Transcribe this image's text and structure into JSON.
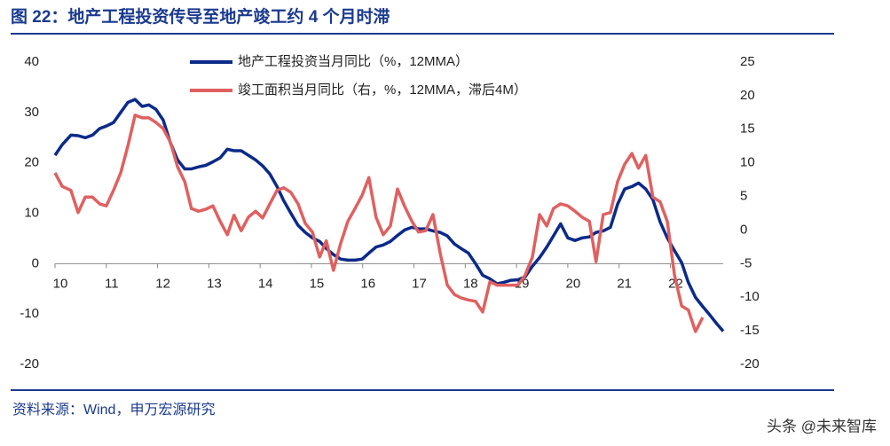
{
  "chart_data": {
    "type": "line",
    "title": "图 22：地产工程投资传导至地产竣工约 4 个月时滞",
    "source": "资料来源：Wind，申万宏源研究",
    "watermark": "头条 @未来智库",
    "x": [
      2010.0,
      2010.14,
      2010.31,
      2010.45,
      2010.59,
      2010.73,
      2010.87,
      2011.0,
      2011.14,
      2011.28,
      2011.42,
      2011.56,
      2011.7,
      2011.83,
      2011.97,
      2012.11,
      2012.25,
      2012.39,
      2012.53,
      2012.66,
      2012.8,
      2012.94,
      2013.08,
      2013.22,
      2013.36,
      2013.49,
      2013.63,
      2013.77,
      2013.91,
      2014.05,
      2014.19,
      2014.33,
      2014.46,
      2014.6,
      2014.74,
      2014.88,
      2015.02,
      2015.16,
      2015.29,
      2015.43,
      2015.57,
      2015.71,
      2015.85,
      2015.99,
      2016.12,
      2016.26,
      2016.4,
      2016.54,
      2016.68,
      2016.82,
      2016.96,
      2017.09,
      2017.23,
      2017.37,
      2017.51,
      2017.65,
      2017.79,
      2017.92,
      2018.06,
      2018.2,
      2018.34,
      2018.48,
      2018.62,
      2018.75,
      2018.89,
      2019.03,
      2019.17,
      2019.31,
      2019.45,
      2019.59,
      2019.72,
      2019.86,
      2020.0,
      2020.14,
      2020.28,
      2020.42,
      2020.55,
      2020.69,
      2020.83,
      2020.97,
      2021.11,
      2021.25,
      2021.38,
      2021.52,
      2021.66,
      2021.8,
      2021.94,
      2022.08,
      2022.22,
      2022.35,
      2022.49,
      2022.63,
      2022.77,
      2022.91,
      2023.03
    ],
    "xlim": [
      2010,
      2023.03
    ],
    "xticks": [
      {
        "value": 2010,
        "label": "10"
      },
      {
        "value": 2011,
        "label": "11"
      },
      {
        "value": 2012,
        "label": "12"
      },
      {
        "value": 2013,
        "label": "13"
      },
      {
        "value": 2014,
        "label": "14"
      },
      {
        "value": 2015,
        "label": "15"
      },
      {
        "value": 2016,
        "label": "16"
      },
      {
        "value": 2017,
        "label": "17"
      },
      {
        "value": 2018,
        "label": "18"
      },
      {
        "value": 2019,
        "label": "19"
      },
      {
        "value": 2020,
        "label": "20"
      },
      {
        "value": 2021,
        "label": "21"
      },
      {
        "value": 2022,
        "label": "22"
      }
    ],
    "ylim": [
      -20,
      40
    ],
    "yticks": [
      40,
      30,
      20,
      10,
      0,
      -10,
      -20
    ],
    "y2lim": [
      -20,
      25
    ],
    "y2ticks": [
      25,
      20,
      15,
      10,
      5,
      0,
      -5,
      -10,
      -15,
      -20
    ],
    "grid": false,
    "series": [
      {
        "name": "地产工程投资当月同比（%，12MMA）",
        "color": "#0b2a8a",
        "values": [
          21.5,
          23.6,
          25.5,
          25.4,
          25,
          25.5,
          26.8,
          27.3,
          28,
          30,
          32,
          32.6,
          31.2,
          31.5,
          30.6,
          28.5,
          24,
          20.6,
          18.8,
          18.8,
          19.2,
          19.5,
          20.2,
          21,
          22.7,
          22.4,
          22.4,
          21.5,
          20.6,
          19.4,
          17.8,
          15.3,
          12.5,
          10,
          7.6,
          6.2,
          5.1,
          4.4,
          3,
          1.8,
          0.9,
          0.7,
          0.7,
          0.9,
          2.1,
          3.3,
          3.7,
          4.4,
          5.6,
          6.7,
          7.2,
          6.9,
          6.9,
          6.5,
          6.2,
          5.5,
          3.9,
          3,
          2.1,
          0,
          -2.3,
          -3,
          -4,
          -3.7,
          -3.3,
          -3.2,
          -2.6,
          -0.5,
          1.2,
          3.3,
          5.5,
          7.9,
          5.1,
          4.6,
          5.1,
          5.3,
          6.2,
          6.5,
          7.2,
          11.8,
          14.8,
          15.3,
          16,
          14.8,
          12.7,
          8.3,
          5.1,
          2.6,
          0.2,
          -3.7,
          -6.7,
          -8.5,
          -10.2,
          -12,
          -13.4
        ]
      },
      {
        "name": "竣工面积当月同比（右，%，12MMA，滞后4M）",
        "color": "#e06060",
        "axis": "y2",
        "values": [
          8.5,
          6.5,
          5.9,
          2.6,
          4.9,
          4.9,
          3.9,
          3.6,
          5.9,
          8.5,
          12.5,
          17.1,
          16.7,
          16.7,
          16,
          15.1,
          13.1,
          9.4,
          7.2,
          3.2,
          2.8,
          3.1,
          3.6,
          1.3,
          -0.7,
          2.2,
          -0.1,
          1.9,
          2.8,
          1.8,
          3.9,
          5.9,
          6.3,
          5.6,
          3.9,
          1,
          -0.3,
          -4,
          -1.6,
          -6,
          -2,
          1.3,
          3.2,
          5.2,
          7.8,
          1.9,
          -0.7,
          0.6,
          6.1,
          3.5,
          1.3,
          -0.3,
          -0.1,
          2.3,
          -3.4,
          -8.2,
          -9.6,
          -10.1,
          -10.4,
          -10.6,
          -12.2,
          -7.7,
          -8.2,
          -8.2,
          -8.2,
          -8.2,
          -6.7,
          -4,
          2.3,
          0.6,
          3.2,
          3.9,
          3.6,
          2.8,
          1.9,
          1.3,
          -4.7,
          2.3,
          2.6,
          7.2,
          9.8,
          11.4,
          9.2,
          11.1,
          4.9,
          4.2,
          1.3,
          -6.7,
          -11.3,
          -11.9,
          -15.1,
          -13,
          null,
          null,
          null
        ]
      }
    ],
    "legend": "upper-center"
  }
}
